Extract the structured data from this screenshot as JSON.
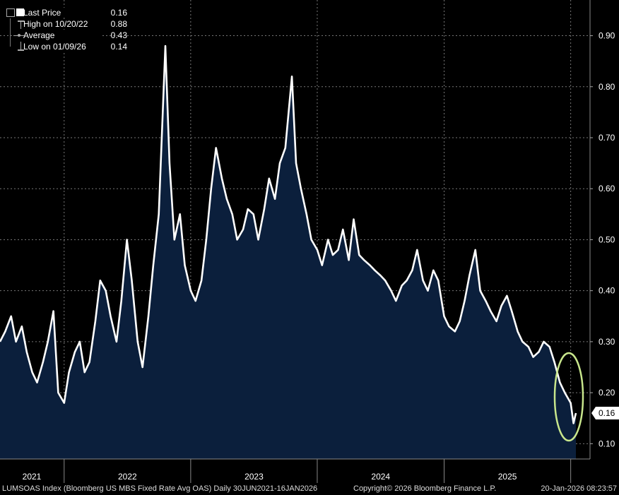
{
  "legend": {
    "last_label": "Last Price",
    "last_value": "0.16",
    "high_label": "High on 10/20/22",
    "high_value": "0.88",
    "avg_label": "Average",
    "avg_value": "0.43",
    "low_label": "Low on 01/09/26",
    "low_value": "0.14"
  },
  "footer": {
    "left": "LUMSOAS Index (Bloomberg US MBS Fixed Rate Avg OAS) Daily 30JUN2021-16JAN2026",
    "center": "Copyright© 2026 Bloomberg Finance L.P.",
    "right": "20-Jan-2026 08:23:57"
  },
  "colors": {
    "background": "#000000",
    "fill": "#0b1f3c",
    "line": "#ffffff",
    "highlight_ellipse": "#c8e68c"
  },
  "chart_data": {
    "type": "area",
    "title": "",
    "xlabel": "",
    "ylabel": "",
    "x_range": [
      "2021-06-30",
      "2026-01-16"
    ],
    "ylim": [
      0.07,
      0.97
    ],
    "y_ticks": [
      "0.10",
      "0.20",
      "0.30",
      "0.40",
      "0.50",
      "0.60",
      "0.70",
      "0.80",
      "0.90"
    ],
    "x_tick_labels": [
      "2021",
      "2022",
      "2023",
      "2024",
      "2025"
    ],
    "last_value_label": "0.16",
    "grid": true,
    "legend_position": "top-left",
    "series": [
      {
        "x": [
          "2021-06-30",
          "2021-07-15",
          "2021-08-01",
          "2021-08-15",
          "2021-09-01",
          "2021-09-15",
          "2021-10-01",
          "2021-10-15",
          "2021-11-01",
          "2021-11-15",
          "2021-12-01",
          "2021-12-15",
          "2022-01-01",
          "2022-01-15",
          "2022-02-01",
          "2022-02-15",
          "2022-03-01",
          "2022-03-15",
          "2022-04-01",
          "2022-04-15",
          "2022-05-01",
          "2022-05-15",
          "2022-06-01",
          "2022-06-15",
          "2022-07-01",
          "2022-07-15",
          "2022-08-01",
          "2022-08-15",
          "2022-09-01",
          "2022-09-15",
          "2022-10-01",
          "2022-10-20",
          "2022-11-01",
          "2022-11-15",
          "2022-12-01",
          "2022-12-15",
          "2023-01-01",
          "2023-01-15",
          "2023-02-01",
          "2023-02-15",
          "2023-03-01",
          "2023-03-15",
          "2023-04-01",
          "2023-04-15",
          "2023-05-01",
          "2023-05-15",
          "2023-06-01",
          "2023-06-15",
          "2023-07-01",
          "2023-07-15",
          "2023-08-01",
          "2023-08-15",
          "2023-09-01",
          "2023-09-15",
          "2023-10-01",
          "2023-10-20",
          "2023-11-01",
          "2023-11-15",
          "2023-12-01",
          "2023-12-15",
          "2024-01-01",
          "2024-01-15",
          "2024-02-01",
          "2024-02-15",
          "2024-03-01",
          "2024-03-15",
          "2024-04-01",
          "2024-04-15",
          "2024-05-01",
          "2024-05-15",
          "2024-06-01",
          "2024-06-15",
          "2024-07-01",
          "2024-07-15",
          "2024-08-01",
          "2024-08-15",
          "2024-09-01",
          "2024-09-15",
          "2024-10-01",
          "2024-10-15",
          "2024-11-01",
          "2024-11-15",
          "2024-12-01",
          "2024-12-15",
          "2025-01-01",
          "2025-01-15",
          "2025-02-01",
          "2025-02-15",
          "2025-03-01",
          "2025-03-15",
          "2025-04-01",
          "2025-04-15",
          "2025-05-01",
          "2025-05-15",
          "2025-06-01",
          "2025-06-15",
          "2025-07-01",
          "2025-07-15",
          "2025-08-01",
          "2025-08-15",
          "2025-09-01",
          "2025-09-15",
          "2025-10-01",
          "2025-10-15",
          "2025-11-01",
          "2025-11-15",
          "2025-12-01",
          "2025-12-15",
          "2026-01-01",
          "2026-01-09",
          "2026-01-16"
        ],
        "values": [
          0.3,
          0.32,
          0.35,
          0.3,
          0.33,
          0.28,
          0.24,
          0.22,
          0.26,
          0.3,
          0.36,
          0.2,
          0.18,
          0.24,
          0.28,
          0.3,
          0.24,
          0.26,
          0.34,
          0.42,
          0.4,
          0.35,
          0.3,
          0.38,
          0.5,
          0.42,
          0.3,
          0.25,
          0.35,
          0.45,
          0.55,
          0.88,
          0.65,
          0.5,
          0.55,
          0.45,
          0.4,
          0.38,
          0.42,
          0.5,
          0.6,
          0.68,
          0.62,
          0.58,
          0.55,
          0.5,
          0.52,
          0.56,
          0.55,
          0.5,
          0.56,
          0.62,
          0.58,
          0.65,
          0.68,
          0.82,
          0.65,
          0.6,
          0.55,
          0.5,
          0.48,
          0.45,
          0.5,
          0.47,
          0.48,
          0.52,
          0.46,
          0.54,
          0.47,
          0.46,
          0.45,
          0.44,
          0.43,
          0.42,
          0.4,
          0.38,
          0.41,
          0.42,
          0.44,
          0.48,
          0.42,
          0.4,
          0.44,
          0.42,
          0.35,
          0.33,
          0.32,
          0.34,
          0.38,
          0.43,
          0.48,
          0.4,
          0.38,
          0.36,
          0.34,
          0.37,
          0.39,
          0.36,
          0.32,
          0.3,
          0.29,
          0.27,
          0.28,
          0.3,
          0.29,
          0.26,
          0.22,
          0.2,
          0.18,
          0.14,
          0.16
        ]
      }
    ]
  }
}
